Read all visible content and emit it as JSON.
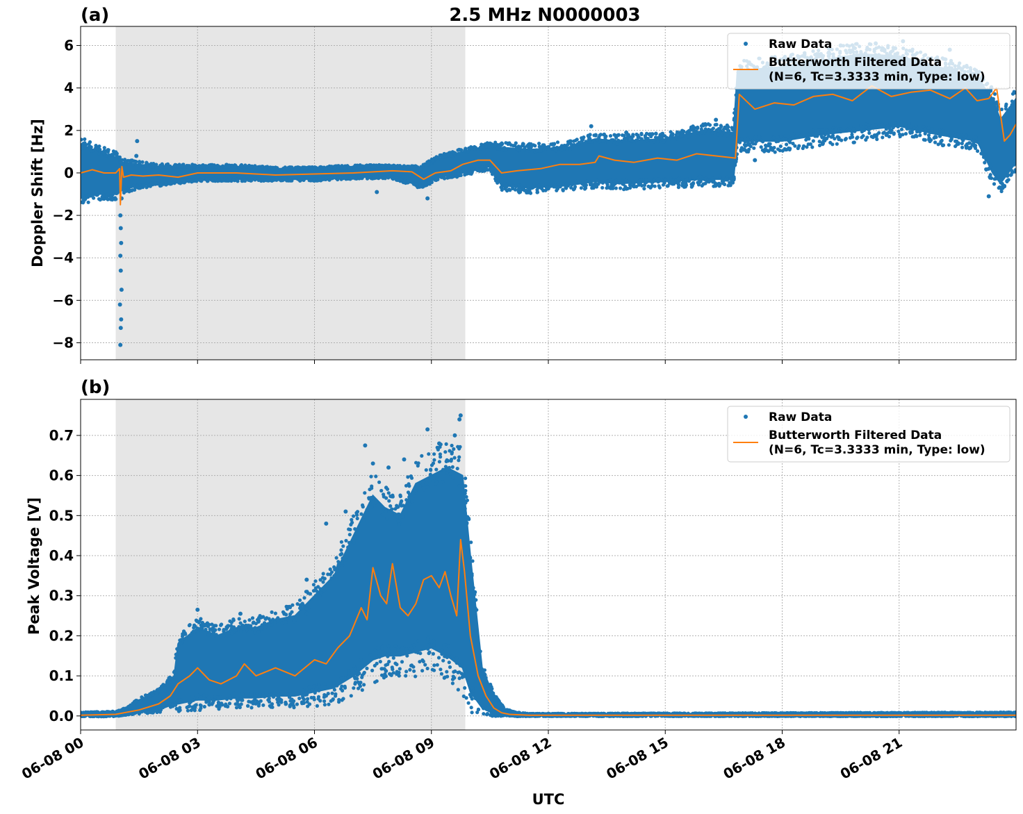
{
  "figure": {
    "title": "2.5 MHz N0000003",
    "xlabel": "UTC",
    "x_tick_labels": [
      "06-08 00",
      "06-08 03",
      "06-08 06",
      "06-08 09",
      "06-08 12",
      "06-08 15",
      "06-08 18",
      "06-08 21"
    ]
  },
  "chart_data": [
    {
      "type": "scatter",
      "panel_label": "(a)",
      "ylabel": "Doppler Shift [Hz]",
      "xlim": [
        0,
        24
      ],
      "ylim": [
        -8.8,
        6.9
      ],
      "y_ticks": [
        6,
        4,
        2,
        0,
        -2,
        -4,
        -6,
        -8
      ],
      "y_tick_labels": [
        "6",
        "4",
        "2",
        "0",
        "−2",
        "−4",
        "−6",
        "−8"
      ],
      "x_ticks": [
        0,
        3,
        6,
        9,
        12,
        15,
        18,
        21
      ],
      "grid": true,
      "shaded_span_hours": [
        0.9,
        9.87
      ],
      "legend": {
        "position": "top-right",
        "entries": [
          "Raw Data",
          "Butterworth Filtered Data\n(N=6, Tc=3.3333 min, Type: low)"
        ]
      },
      "series": [
        {
          "name": "Raw Data",
          "kind": "band",
          "color": "#1f77b4",
          "x": [
            0,
            0.5,
            0.95,
            1.05,
            1.5,
            2,
            3,
            4,
            5,
            6,
            7,
            8,
            8.7,
            9.2,
            9.8,
            10.5,
            10.8,
            11.5,
            12.5,
            13.2,
            13.8,
            15,
            16,
            16.75,
            16.85,
            18,
            19,
            20,
            21,
            22,
            23,
            23.4,
            23.6,
            24
          ],
          "lo": [
            -1.2,
            -1.0,
            -1.0,
            -0.8,
            -0.6,
            -0.5,
            -0.3,
            -0.3,
            -0.3,
            -0.3,
            -0.2,
            -0.2,
            -0.6,
            -0.2,
            0.0,
            0.3,
            -0.6,
            -0.7,
            -0.6,
            -0.4,
            -0.5,
            -0.4,
            -0.3,
            -0.3,
            1.5,
            1.5,
            1.8,
            2.0,
            2.2,
            1.8,
            1.5,
            0.0,
            -0.5,
            0.5
          ],
          "hi": [
            1.3,
            1.0,
            0.7,
            0.5,
            0.4,
            0.3,
            0.3,
            0.3,
            0.2,
            0.2,
            0.3,
            0.3,
            0.2,
            0.7,
            1.0,
            1.3,
            1.2,
            1.1,
            1.2,
            1.6,
            1.5,
            1.6,
            2.0,
            1.9,
            4.8,
            5.0,
            5.3,
            5.6,
            5.5,
            5.0,
            4.5,
            3.5,
            2.5,
            3.5
          ],
          "outliers": [
            [
              1.02,
              -8.1
            ],
            [
              1.03,
              -7.3
            ],
            [
              1.04,
              -6.9
            ],
            [
              1.01,
              -6.2
            ],
            [
              1.05,
              -5.5
            ],
            [
              1.03,
              -4.6
            ],
            [
              1.02,
              -3.9
            ],
            [
              1.04,
              -3.3
            ],
            [
              1.03,
              -2.6
            ],
            [
              1.02,
              -2.0
            ],
            [
              1.05,
              -1.2
            ],
            [
              1.45,
              1.5
            ],
            [
              1.43,
              0.8
            ],
            [
              19.5,
              6.0
            ],
            [
              20.4,
              6.1
            ],
            [
              21.1,
              6.2
            ],
            [
              22.3,
              5.8
            ],
            [
              23.3,
              -1.1
            ],
            [
              13.1,
              2.2
            ],
            [
              14.0,
              1.9
            ],
            [
              16.3,
              2.5
            ],
            [
              7.6,
              -0.9
            ],
            [
              8.9,
              -1.2
            ],
            [
              17.3,
              0.6
            ]
          ]
        },
        {
          "name": "Butterworth Filtered Data\n(N=6, Tc=3.3333 min, Type: low)",
          "kind": "line",
          "color": "#ff7f0e",
          "x": [
            0,
            0.3,
            0.6,
            0.9,
            1.0,
            1.02,
            1.06,
            1.1,
            1.3,
            1.6,
            2.0,
            2.5,
            3.0,
            4.0,
            5.0,
            6.0,
            7.0,
            8.0,
            8.5,
            8.8,
            9.1,
            9.5,
            9.8,
            10.2,
            10.5,
            10.8,
            11.2,
            11.8,
            12.3,
            12.8,
            13.2,
            13.3,
            13.7,
            14.2,
            14.8,
            15.3,
            15.8,
            16.3,
            16.8,
            16.9,
            17.3,
            17.8,
            18.3,
            18.8,
            19.3,
            19.8,
            20.3,
            20.8,
            21.3,
            21.8,
            22.3,
            22.7,
            23.0,
            23.3,
            23.5,
            23.7,
            23.85,
            24
          ],
          "y": [
            0.0,
            0.15,
            0.0,
            0.0,
            0.2,
            -1.5,
            0.3,
            -0.2,
            -0.1,
            -0.15,
            -0.1,
            -0.2,
            0.0,
            0.0,
            -0.1,
            -0.05,
            0.0,
            0.1,
            0.05,
            -0.3,
            0.0,
            0.1,
            0.4,
            0.6,
            0.6,
            0.0,
            0.1,
            0.2,
            0.4,
            0.4,
            0.5,
            0.8,
            0.6,
            0.5,
            0.7,
            0.6,
            0.9,
            0.8,
            0.7,
            3.7,
            3.0,
            3.3,
            3.2,
            3.6,
            3.7,
            3.4,
            4.1,
            3.6,
            3.8,
            3.9,
            3.5,
            4.0,
            3.4,
            3.5,
            4.0,
            1.5,
            1.8,
            2.3
          ]
        }
      ]
    },
    {
      "type": "scatter",
      "panel_label": "(b)",
      "ylabel": "Peak Voltage [V]",
      "xlim": [
        0,
        24
      ],
      "ylim": [
        -0.035,
        0.79
      ],
      "y_ticks": [
        0.7,
        0.6,
        0.5,
        0.4,
        0.3,
        0.2,
        0.1,
        0.0
      ],
      "y_tick_labels": [
        "0.7",
        "0.6",
        "0.5",
        "0.4",
        "0.3",
        "0.2",
        "0.1",
        "0.0"
      ],
      "x_ticks": [
        0,
        3,
        6,
        9,
        12,
        15,
        18,
        21
      ],
      "grid": true,
      "shaded_span_hours": [
        0.9,
        9.87
      ],
      "legend": {
        "position": "top-right",
        "entries": [
          "Raw Data",
          "Butterworth Filtered Data\n(N=6, Tc=3.3333 min, Type: low)"
        ]
      },
      "series": [
        {
          "name": "Raw Data",
          "kind": "band",
          "color": "#1f77b4",
          "x": [
            0,
            0.9,
            1.2,
            1.5,
            2.0,
            2.4,
            2.5,
            3.0,
            3.5,
            4.0,
            4.5,
            5.0,
            5.5,
            6.0,
            6.5,
            7.0,
            7.5,
            7.8,
            8.2,
            8.6,
            9.0,
            9.4,
            9.8,
            10.0,
            10.3,
            10.6,
            10.9,
            11.2,
            11.5,
            24
          ],
          "lo": [
            0.0,
            0.0,
            0.005,
            0.01,
            0.015,
            0.03,
            0.03,
            0.04,
            0.04,
            0.045,
            0.045,
            0.05,
            0.05,
            0.06,
            0.07,
            0.1,
            0.14,
            0.15,
            0.15,
            0.16,
            0.17,
            0.15,
            0.12,
            0.06,
            0.02,
            0.005,
            0.002,
            0.0,
            0.0,
            0.0
          ],
          "hi": [
            0.008,
            0.01,
            0.02,
            0.04,
            0.06,
            0.1,
            0.18,
            0.22,
            0.2,
            0.22,
            0.22,
            0.24,
            0.25,
            0.3,
            0.35,
            0.45,
            0.55,
            0.52,
            0.5,
            0.58,
            0.6,
            0.62,
            0.6,
            0.4,
            0.12,
            0.05,
            0.015,
            0.008,
            0.005,
            0.008
          ],
          "outliers": [
            [
              7.3,
              0.675
            ],
            [
              8.9,
              0.715
            ],
            [
              9.75,
              0.75
            ],
            [
              9.72,
              0.74
            ],
            [
              9.6,
              0.7
            ],
            [
              8.3,
              0.64
            ],
            [
              7.9,
              0.62
            ],
            [
              7.5,
              0.63
            ],
            [
              3.0,
              0.265
            ],
            [
              4.1,
              0.255
            ],
            [
              5.8,
              0.255
            ],
            [
              6.3,
              0.48
            ],
            [
              6.8,
              0.51
            ],
            [
              5.8,
              0.34
            ],
            [
              9.2,
              0.68
            ]
          ]
        },
        {
          "name": "Butterworth Filtered Data\n(N=6, Tc=3.3333 min, Type: low)",
          "kind": "line",
          "color": "#ff7f0e",
          "x": [
            0,
            0.9,
            1.5,
            2.0,
            2.3,
            2.5,
            2.8,
            3.0,
            3.3,
            3.6,
            4.0,
            4.2,
            4.5,
            5.0,
            5.5,
            6.0,
            6.3,
            6.6,
            6.9,
            7.2,
            7.35,
            7.5,
            7.7,
            7.85,
            8.0,
            8.2,
            8.4,
            8.6,
            8.8,
            9.0,
            9.2,
            9.35,
            9.5,
            9.65,
            9.75,
            9.85,
            10.0,
            10.2,
            10.4,
            10.6,
            10.8,
            11.0,
            11.5,
            24
          ],
          "y": [
            0.002,
            0.004,
            0.015,
            0.03,
            0.05,
            0.08,
            0.1,
            0.12,
            0.09,
            0.08,
            0.1,
            0.13,
            0.1,
            0.12,
            0.1,
            0.14,
            0.13,
            0.17,
            0.2,
            0.27,
            0.24,
            0.37,
            0.3,
            0.28,
            0.38,
            0.27,
            0.25,
            0.28,
            0.34,
            0.35,
            0.32,
            0.36,
            0.3,
            0.25,
            0.44,
            0.36,
            0.2,
            0.1,
            0.05,
            0.02,
            0.008,
            0.004,
            0.002,
            0.002
          ]
        }
      ]
    }
  ]
}
